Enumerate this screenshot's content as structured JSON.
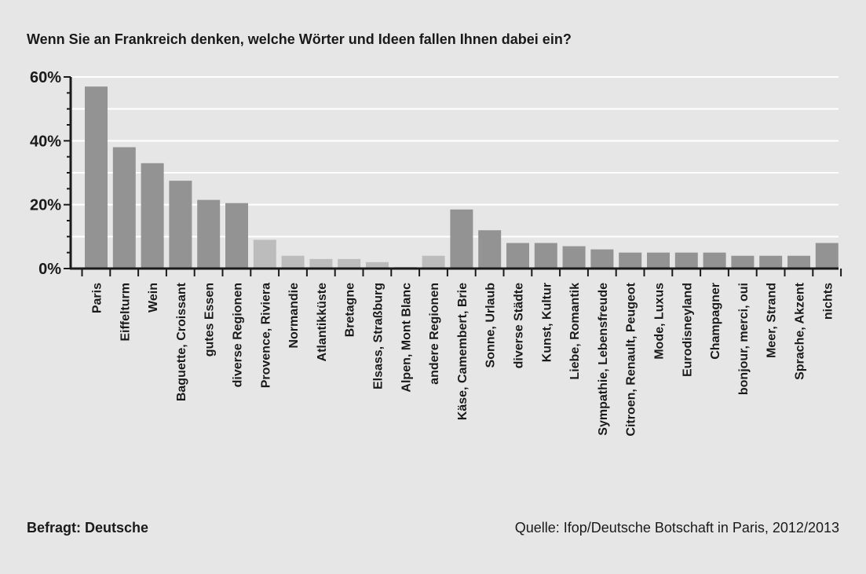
{
  "title": "Wenn Sie an Frankreich denken, welche Wörter und Ideen fallen Ihnen dabei ein?",
  "footer": {
    "respondents": "Befragt: Deutsche",
    "source": "Quelle: Ifop/Deutsche Botschaft in Paris, 2012/2013"
  },
  "colors": {
    "background": "#e6e6e6",
    "bar": "#939393",
    "bar_light": "#bcbcbc",
    "axis": "#1a1a1a",
    "grid": "#ffffff"
  },
  "chart_data": {
    "type": "bar",
    "title": "Wenn Sie an Frankreich denken, welche Wörter und Ideen fallen Ihnen dabei ein?",
    "xlabel": "",
    "ylabel": "",
    "ylim": [
      0,
      60
    ],
    "yticks": [
      0,
      20,
      40,
      60
    ],
    "ytick_labels": [
      "0%",
      "20%",
      "40%",
      "60%"
    ],
    "grid": true,
    "categories": [
      "Paris",
      "Eiffelturm",
      "Wein",
      "Baguette, Croissant",
      "gutes Essen",
      "diverse Regionen",
      "Provence, Riviera",
      "Normandie",
      "Atlantikküste",
      "Bretagne",
      "Elsass, Straßburg",
      "Alpen, Mont Blanc",
      "andere Regionen",
      "Käse, Camembert, Brie",
      "Sonne, Urlaub",
      "diverse Städte",
      "Kunst, Kultur",
      "Liebe, Romantik",
      "Sympathie, Lebensfreude",
      "Citroen, Renault, Peugeot",
      "Mode, Luxus",
      "Eurodisneyland",
      "Champagner",
      "bonjour, merci, oui",
      "Meer, Strand",
      "Sprache, Akzent",
      "nichts"
    ],
    "values": [
      57,
      38,
      33,
      27.5,
      21.5,
      20.5,
      9,
      4,
      3,
      3,
      2,
      0.5,
      4,
      18.5,
      12,
      8,
      8,
      7,
      6,
      5,
      5,
      5,
      5,
      4,
      4,
      4,
      8
    ],
    "highlight": [
      false,
      false,
      false,
      false,
      false,
      false,
      true,
      true,
      true,
      true,
      true,
      true,
      true,
      false,
      false,
      false,
      false,
      false,
      false,
      false,
      false,
      false,
      false,
      false,
      false,
      false,
      false
    ]
  }
}
